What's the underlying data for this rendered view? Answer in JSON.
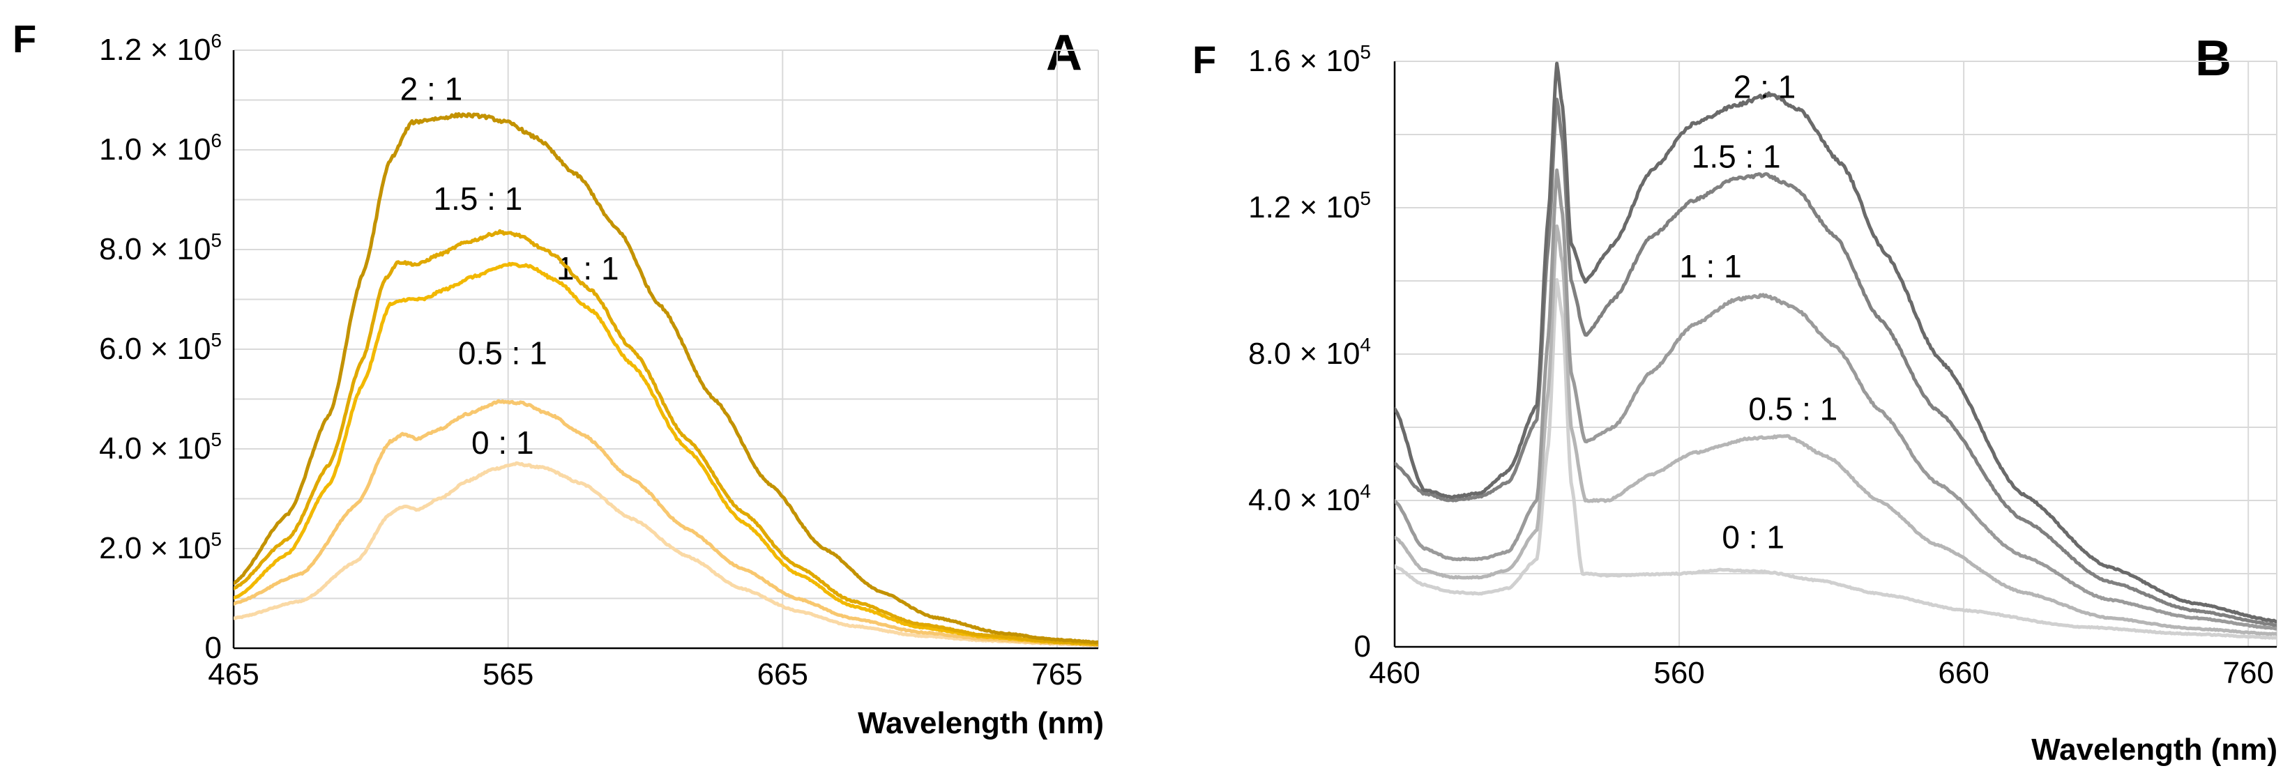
{
  "chart_data": [
    {
      "type": "line",
      "panel": "A",
      "ylabel": "F",
      "xlabel": "Wavelength (nm)",
      "xlim": [
        465,
        780
      ],
      "ylim": [
        0,
        1200000
      ],
      "xticks": [
        465,
        565,
        665,
        765
      ],
      "yticks": [
        {
          "value": 0,
          "mantissa": "0",
          "exp": ""
        },
        {
          "value": 200000,
          "mantissa": "2.0 × 10",
          "exp": "5"
        },
        {
          "value": 400000,
          "mantissa": "4.0 × 10",
          "exp": "5"
        },
        {
          "value": 600000,
          "mantissa": "6.0 × 10",
          "exp": "5"
        },
        {
          "value": 800000,
          "mantissa": "8.0 × 10",
          "exp": "5"
        },
        {
          "value": 1000000,
          "mantissa": "1.0 × 10",
          "exp": "6"
        },
        {
          "value": 1200000,
          "mantissa": "1.2 × 10",
          "exp": "6"
        }
      ],
      "grid": true,
      "series": [
        {
          "name": "0 : 1",
          "color": "#fad9a5",
          "label_at": [
            563,
            390000
          ],
          "points": [
            [
              465,
              60000
            ],
            [
              490,
              95000
            ],
            [
              510,
              175000
            ],
            [
              522,
              270000
            ],
            [
              527,
              285000
            ],
            [
              532,
              278000
            ],
            [
              540,
              300000
            ],
            [
              550,
              335000
            ],
            [
              560,
              360000
            ],
            [
              568,
              370000
            ],
            [
              578,
              362000
            ],
            [
              592,
              330000
            ],
            [
              610,
              260000
            ],
            [
              630,
              185000
            ],
            [
              650,
              120000
            ],
            [
              670,
              75000
            ],
            [
              690,
              45000
            ],
            [
              715,
              25000
            ],
            [
              740,
              15000
            ],
            [
              765,
              9000
            ],
            [
              780,
              6000
            ]
          ]
        },
        {
          "name": "0.5 : 1",
          "color": "#f8c76e",
          "label_at": [
            563,
            570000
          ],
          "points": [
            [
              465,
              90000
            ],
            [
              490,
              150000
            ],
            [
              510,
              290000
            ],
            [
              522,
              415000
            ],
            [
              527,
              430000
            ],
            [
              532,
              420000
            ],
            [
              540,
              440000
            ],
            [
              550,
              470000
            ],
            [
              562,
              495000
            ],
            [
              570,
              492000
            ],
            [
              580,
              470000
            ],
            [
              592,
              430000
            ],
            [
              610,
              340000
            ],
            [
              630,
              240000
            ],
            [
              650,
              160000
            ],
            [
              670,
              100000
            ],
            [
              690,
              60000
            ],
            [
              715,
              32000
            ],
            [
              740,
              18000
            ],
            [
              765,
              10000
            ],
            [
              780,
              7000
            ]
          ]
        },
        {
          "name": "1 : 1",
          "color": "#f2b800",
          "label_at": [
            594,
            740000
          ],
          "points": [
            [
              465,
              100000
            ],
            [
              485,
              190000
            ],
            [
              500,
              330000
            ],
            [
              512,
              530000
            ],
            [
              522,
              690000
            ],
            [
              528,
              700000
            ],
            [
              534,
              700000
            ],
            [
              542,
              720000
            ],
            [
              552,
              745000
            ],
            [
              565,
              770000
            ],
            [
              572,
              768000
            ],
            [
              582,
              740000
            ],
            [
              595,
              680000
            ],
            [
              610,
              570000
            ],
            [
              630,
              400000
            ],
            [
              650,
              255000
            ],
            [
              670,
              150000
            ],
            [
              690,
              85000
            ],
            [
              715,
              42000
            ],
            [
              740,
              22000
            ],
            [
              765,
              12000
            ],
            [
              780,
              8000
            ]
          ]
        },
        {
          "name": "1.5 : 1",
          "color": "#e0a800",
          "label_at": [
            554,
            880000
          ],
          "points": [
            [
              465,
              120000
            ],
            [
              485,
              220000
            ],
            [
              500,
              370000
            ],
            [
              512,
              580000
            ],
            [
              520,
              740000
            ],
            [
              525,
              775000
            ],
            [
              532,
              770000
            ],
            [
              540,
              790000
            ],
            [
              550,
              815000
            ],
            [
              562,
              835000
            ],
            [
              568,
              830000
            ],
            [
              580,
              795000
            ],
            [
              595,
              720000
            ],
            [
              610,
              600000
            ],
            [
              630,
              420000
            ],
            [
              650,
              275000
            ],
            [
              670,
              165000
            ],
            [
              690,
              95000
            ],
            [
              715,
              48000
            ],
            [
              740,
              25000
            ],
            [
              765,
              13000
            ],
            [
              780,
              9000
            ]
          ]
        },
        {
          "name": "2 : 1",
          "color": "#c39200",
          "label_at": [
            537,
            1100000
          ],
          "points": [
            [
              465,
              130000
            ],
            [
              485,
              270000
            ],
            [
              500,
              470000
            ],
            [
              512,
              750000
            ],
            [
              522,
              980000
            ],
            [
              530,
              1055000
            ],
            [
              538,
              1062000
            ],
            [
              548,
              1070000
            ],
            [
              555,
              1068000
            ],
            [
              565,
              1055000
            ],
            [
              575,
              1025000
            ],
            [
              590,
              950000
            ],
            [
              605,
              840000
            ],
            [
              620,
              690000
            ],
            [
              640,
              500000
            ],
            [
              660,
              330000
            ],
            [
              680,
              200000
            ],
            [
              700,
              115000
            ],
            [
              720,
              62000
            ],
            [
              745,
              30000
            ],
            [
              765,
              17000
            ],
            [
              780,
              12000
            ]
          ]
        }
      ]
    },
    {
      "type": "line",
      "panel": "B",
      "ylabel": "F",
      "xlabel": "Wavelength (nm)",
      "xlim": [
        460,
        770
      ],
      "ylim": [
        0,
        160000
      ],
      "xticks": [
        460,
        560,
        660,
        760
      ],
      "yticks": [
        {
          "value": 0,
          "mantissa": "0",
          "exp": ""
        },
        {
          "value": 40000,
          "mantissa": "4.0 × 10",
          "exp": "4"
        },
        {
          "value": 80000,
          "mantissa": "8.0 × 10",
          "exp": "4"
        },
        {
          "value": 120000,
          "mantissa": "1.2 × 10",
          "exp": "5"
        },
        {
          "value": 160000,
          "mantissa": "1.6 × 10",
          "exp": "5"
        }
      ],
      "grid": true,
      "series": [
        {
          "name": "0 : 1",
          "color": "#d0d0d0",
          "label_at": [
            586,
            27000
          ],
          "points": [
            [
              460,
              22000
            ],
            [
              470,
              17000
            ],
            [
              480,
              15000
            ],
            [
              490,
              14500
            ],
            [
              500,
              16000
            ],
            [
              510,
              24000
            ],
            [
              514,
              55000
            ],
            [
              517,
              100000
            ],
            [
              519,
              90000
            ],
            [
              522,
              45000
            ],
            [
              526,
              20000
            ],
            [
              535,
              19500
            ],
            [
              560,
              20000
            ],
            [
              575,
              21000
            ],
            [
              590,
              20500
            ],
            [
              610,
              18000
            ],
            [
              630,
              14500
            ],
            [
              660,
              10000
            ],
            [
              700,
              5500
            ],
            [
              740,
              3500
            ],
            [
              770,
              2500
            ]
          ]
        },
        {
          "name": "0.5 : 1",
          "color": "#b5b5b5",
          "label_at": [
            600,
            62000
          ],
          "points": [
            [
              460,
              30000
            ],
            [
              470,
              21000
            ],
            [
              480,
              19000
            ],
            [
              490,
              19000
            ],
            [
              500,
              21000
            ],
            [
              510,
              32000
            ],
            [
              514,
              70000
            ],
            [
              517,
              115000
            ],
            [
              519,
              105000
            ],
            [
              522,
              60000
            ],
            [
              527,
              40000
            ],
            [
              535,
              40000
            ],
            [
              550,
              47000
            ],
            [
              565,
              53000
            ],
            [
              585,
              57000
            ],
            [
              598,
              57500
            ],
            [
              612,
              52000
            ],
            [
              630,
              40000
            ],
            [
              650,
              28000
            ],
            [
              680,
              15000
            ],
            [
              710,
              8000
            ],
            [
              740,
              5000
            ],
            [
              770,
              3500
            ]
          ]
        },
        {
          "name": "1 : 1",
          "color": "#9a9a9a",
          "label_at": [
            571,
            101000
          ],
          "points": [
            [
              460,
              40000
            ],
            [
              470,
              27000
            ],
            [
              480,
              24000
            ],
            [
              490,
              24000
            ],
            [
              500,
              26000
            ],
            [
              510,
              40000
            ],
            [
              514,
              85000
            ],
            [
              517,
              130000
            ],
            [
              519,
              118000
            ],
            [
              522,
              75000
            ],
            [
              527,
              56000
            ],
            [
              537,
              60000
            ],
            [
              550,
              75000
            ],
            [
              565,
              88000
            ],
            [
              580,
              95000
            ],
            [
              590,
              96000
            ],
            [
              600,
              93000
            ],
            [
              615,
              82000
            ],
            [
              630,
              65000
            ],
            [
              650,
              45000
            ],
            [
              680,
              25000
            ],
            [
              710,
              13000
            ],
            [
              740,
              8000
            ],
            [
              770,
              5000
            ]
          ]
        },
        {
          "name": "1.5 : 1",
          "color": "#808080",
          "label_at": [
            580,
            131000
          ],
          "points": [
            [
              460,
              50000
            ],
            [
              470,
              42000
            ],
            [
              480,
              40000
            ],
            [
              490,
              41000
            ],
            [
              500,
              45000
            ],
            [
              510,
              62000
            ],
            [
              514,
              110000
            ],
            [
              517,
              150000
            ],
            [
              519,
              138000
            ],
            [
              522,
              100000
            ],
            [
              527,
              85000
            ],
            [
              537,
              95000
            ],
            [
              550,
              112000
            ],
            [
              565,
              122000
            ],
            [
              580,
              128000
            ],
            [
              590,
              129000
            ],
            [
              600,
              126000
            ],
            [
              615,
              112000
            ],
            [
              630,
              90000
            ],
            [
              650,
              65000
            ],
            [
              680,
              35000
            ],
            [
              710,
              18000
            ],
            [
              740,
              10000
            ],
            [
              770,
              6000
            ]
          ]
        },
        {
          "name": "2 : 1",
          "color": "#6a6a6a",
          "label_at": [
            590,
            150000
          ],
          "points": [
            [
              460,
              65000
            ],
            [
              470,
              43000
            ],
            [
              480,
              41000
            ],
            [
              490,
              42000
            ],
            [
              500,
              48000
            ],
            [
              510,
              66000
            ],
            [
              514,
              118000
            ],
            [
              517,
              159000
            ],
            [
              519,
              148000
            ],
            [
              522,
              110000
            ],
            [
              527,
              100000
            ],
            [
              537,
              110000
            ],
            [
              550,
              130000
            ],
            [
              565,
              143000
            ],
            [
              580,
              148000
            ],
            [
              592,
              151000
            ],
            [
              602,
              147000
            ],
            [
              617,
              132000
            ],
            [
              632,
              108000
            ],
            [
              652,
              78000
            ],
            [
              680,
              42000
            ],
            [
              710,
              22000
            ],
            [
              740,
              12000
            ],
            [
              770,
              7000
            ]
          ]
        }
      ]
    }
  ]
}
